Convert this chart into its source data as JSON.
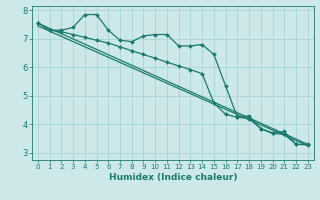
{
  "xlabel": "Humidex (Indice chaleur)",
  "bg_color": "#cce8e8",
  "grid_color": "#aad4d4",
  "line_color": "#1a7a6e",
  "xlim": [
    -0.5,
    23.5
  ],
  "ylim": [
    2.75,
    8.15
  ],
  "xticks": [
    0,
    1,
    2,
    3,
    4,
    5,
    6,
    7,
    8,
    9,
    10,
    11,
    12,
    13,
    14,
    15,
    16,
    17,
    18,
    19,
    20,
    21,
    22,
    23
  ],
  "yticks": [
    3,
    4,
    5,
    6,
    7,
    8
  ],
  "line1_x": [
    0,
    1,
    2,
    3,
    4,
    5,
    6,
    7,
    8,
    9,
    10,
    11,
    12,
    13,
    14,
    15,
    16,
    17,
    18,
    19,
    20,
    21,
    22,
    23
  ],
  "line1_y": [
    7.55,
    7.3,
    7.3,
    7.4,
    7.85,
    7.85,
    7.3,
    6.95,
    6.9,
    7.1,
    7.15,
    7.15,
    6.75,
    6.75,
    6.8,
    6.45,
    5.35,
    4.25,
    4.3,
    3.85,
    3.7,
    3.75,
    3.3,
    3.3
  ],
  "line2_x": [
    0,
    1,
    2,
    3,
    4,
    5,
    6,
    7,
    8,
    9,
    10,
    11,
    12,
    13,
    14,
    15,
    16,
    17,
    18,
    19,
    20,
    21,
    22,
    23
  ],
  "line2_y": [
    7.55,
    7.3,
    7.25,
    7.15,
    7.05,
    6.95,
    6.85,
    6.72,
    6.58,
    6.45,
    6.32,
    6.18,
    6.05,
    5.92,
    5.78,
    4.75,
    4.35,
    4.25,
    4.2,
    3.85,
    3.68,
    3.65,
    3.3,
    3.28
  ],
  "line3_x": [
    0,
    23
  ],
  "line3_y": [
    7.55,
    3.3
  ],
  "line4_x": [
    0,
    23
  ],
  "line4_y": [
    7.45,
    3.25
  ],
  "lw": 0.9,
  "ms": 2.0
}
